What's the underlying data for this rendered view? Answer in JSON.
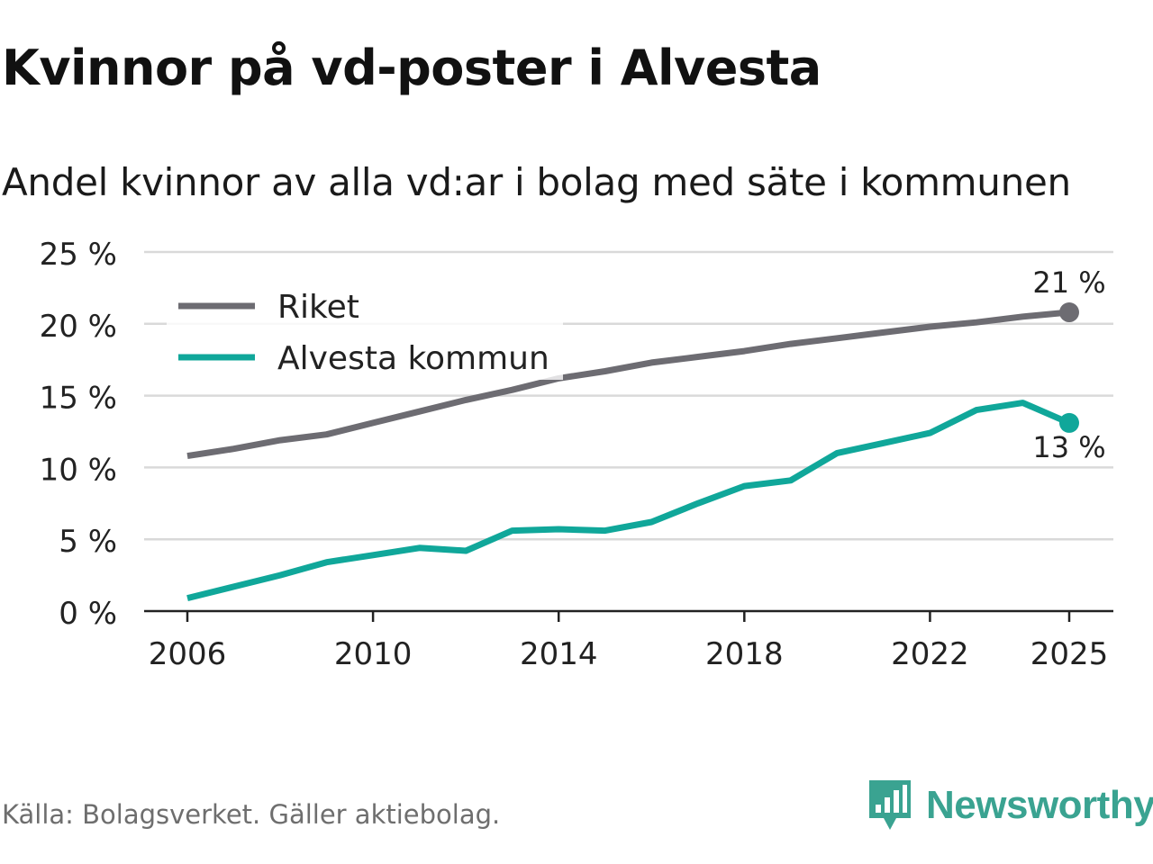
{
  "header": {
    "title": "Kvinnor på vd-poster i Alvesta",
    "subtitle": "Andel kvinnor av alla vd:ar i bolag med säte i kommunen"
  },
  "footer": {
    "source": "Källa: Bolagsverket. Gäller aktiebolag.",
    "brand": "Newsworthy"
  },
  "colors": {
    "riket": "#6d6c72",
    "alvesta": "#10a79a",
    "grid": "#d9d9d9",
    "axis": "#222222",
    "brand": "#3aa391"
  },
  "chart_data": {
    "type": "line",
    "x": [
      2006,
      2007,
      2008,
      2009,
      2010,
      2011,
      2012,
      2013,
      2014,
      2015,
      2016,
      2017,
      2018,
      2019,
      2020,
      2021,
      2022,
      2023,
      2024,
      2025
    ],
    "xticks": [
      2006,
      2010,
      2014,
      2018,
      2022,
      2025
    ],
    "xtick_labels": [
      "2006",
      "2010",
      "2014",
      "2018",
      "2022",
      "2025"
    ],
    "yticks": [
      0,
      5,
      10,
      15,
      20,
      25
    ],
    "ytick_labels": [
      "0 %",
      "5 %",
      "10 %",
      "15 %",
      "20 %",
      "25 %"
    ],
    "ylim": [
      0,
      25
    ],
    "grid": true,
    "legend_position": "top-left",
    "series": [
      {
        "name": "Riket",
        "color": "#6d6c72",
        "values": [
          10.8,
          11.3,
          11.9,
          12.3,
          13.1,
          13.9,
          14.7,
          15.4,
          16.2,
          16.7,
          17.3,
          17.7,
          18.1,
          18.6,
          19.0,
          19.4,
          19.8,
          20.1,
          20.5,
          20.8
        ],
        "end_label": "21 %"
      },
      {
        "name": "Alvesta kommun",
        "color": "#10a79a",
        "values": [
          0.9,
          1.7,
          2.5,
          3.4,
          3.9,
          4.4,
          4.2,
          5.6,
          5.7,
          5.6,
          6.2,
          7.5,
          8.7,
          9.1,
          11.0,
          11.7,
          12.4,
          14.0,
          14.5,
          13.1
        ],
        "end_label": "13 %"
      }
    ]
  }
}
